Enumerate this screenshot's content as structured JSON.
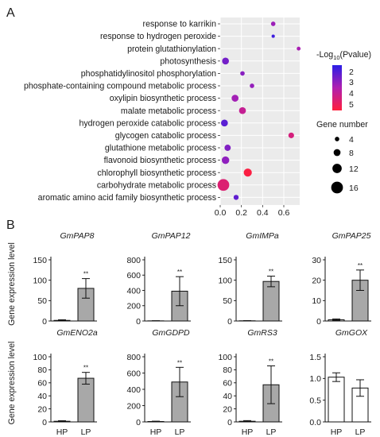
{
  "panel_labels": {
    "a": "A",
    "b": "B"
  },
  "legend": {
    "pvalue_title_prefix": "-Log",
    "pvalue_title_sub": "10",
    "pvalue_title_suffix": "(Pvalue)",
    "pvalue_ticks": [
      "2",
      "3",
      "4",
      "5"
    ],
    "gene_title": "Gene number",
    "gene_sizes": [
      4,
      8,
      12,
      16
    ],
    "gene_labels": [
      "4",
      "8",
      "12",
      "16"
    ],
    "colors": {
      "low": "#2a1ee6",
      "high": "#ff1f3d"
    }
  },
  "chart_data": [
    {
      "type": "scatter",
      "panel": "A",
      "title": "",
      "xlabel": "",
      "ylabel": "",
      "xlim": [
        0.0,
        0.75
      ],
      "x_ticks": [
        "0.0",
        "0.2",
        "0.4",
        "0.6"
      ],
      "x_tick_values": [
        0.0,
        0.2,
        0.4,
        0.6
      ],
      "grid": true,
      "points": [
        {
          "term": "response to karrikin",
          "x": 0.5,
          "genes": 4,
          "neglog10p": 3.2
        },
        {
          "term": "response to hydrogen peroxide",
          "x": 0.5,
          "genes": 2,
          "neglog10p": 1.8
        },
        {
          "term": "protein glutathionylation",
          "x": 0.74,
          "genes": 3,
          "neglog10p": 3.4
        },
        {
          "term": "photosynthesis",
          "x": 0.05,
          "genes": 8,
          "neglog10p": 2.6
        },
        {
          "term": "phosphatidylinositol phosphorylation",
          "x": 0.21,
          "genes": 4,
          "neglog10p": 2.9
        },
        {
          "term": "phosphate-containing compound metabolic process",
          "x": 0.3,
          "genes": 4,
          "neglog10p": 3.1
        },
        {
          "term": "oxylipin biosynthetic process",
          "x": 0.14,
          "genes": 8,
          "neglog10p": 3.3
        },
        {
          "term": "malate metabolic process",
          "x": 0.21,
          "genes": 8,
          "neglog10p": 4.0
        },
        {
          "term": "hydrogen peroxide catabolic process",
          "x": 0.04,
          "genes": 8,
          "neglog10p": 2.2
        },
        {
          "term": "glycogen catabolic process",
          "x": 0.67,
          "genes": 6,
          "neglog10p": 4.4
        },
        {
          "term": "glutathione metabolic process",
          "x": 0.07,
          "genes": 7,
          "neglog10p": 2.8
        },
        {
          "term": "flavonoid biosynthetic process",
          "x": 0.05,
          "genes": 9,
          "neglog10p": 3.0
        },
        {
          "term": "chlorophyll biosynthetic process",
          "x": 0.26,
          "genes": 10,
          "neglog10p": 5.4
        },
        {
          "term": "carbohydrate metabolic process",
          "x": 0.03,
          "genes": 16,
          "neglog10p": 4.6
        },
        {
          "term": "aromatic amino acid family biosynthetic process",
          "x": 0.15,
          "genes": 5,
          "neglog10p": 2.3
        }
      ]
    },
    {
      "type": "bar",
      "gene": "GmPAP8",
      "categories": [
        "HP",
        "LP"
      ],
      "values": [
        1.5,
        80
      ],
      "errors": [
        1.5,
        24
      ],
      "ylim": [
        0,
        150
      ],
      "yticks": [
        "0",
        "50",
        "100",
        "150"
      ],
      "significance": "**",
      "ylabel": "Gene expression level"
    },
    {
      "type": "bar",
      "gene": "GmPAP12",
      "categories": [
        "HP",
        "LP"
      ],
      "values": [
        2,
        390
      ],
      "errors": [
        2,
        190
      ],
      "ylim": [
        0,
        800
      ],
      "yticks": [
        "0",
        "200",
        "400",
        "600",
        "800"
      ],
      "significance": "**",
      "ylabel": ""
    },
    {
      "type": "bar",
      "gene": "GmIMPa",
      "categories": [
        "HP",
        "LP"
      ],
      "values": [
        0.5,
        97
      ],
      "errors": [
        0.5,
        13
      ],
      "ylim": [
        0,
        150
      ],
      "yticks": [
        "0",
        "50",
        "100",
        "150"
      ],
      "significance": "**",
      "ylabel": ""
    },
    {
      "type": "bar",
      "gene": "GmPAP25",
      "categories": [
        "HP",
        "LP"
      ],
      "values": [
        0.6,
        20
      ],
      "errors": [
        0.4,
        5
      ],
      "ylim": [
        0,
        30
      ],
      "yticks": [
        "0",
        "10",
        "20",
        "30"
      ],
      "significance": "**",
      "ylabel": ""
    },
    {
      "type": "bar",
      "gene": "GmENO2a",
      "categories": [
        "HP",
        "LP"
      ],
      "values": [
        1,
        67
      ],
      "errors": [
        0.8,
        9
      ],
      "ylim": [
        0,
        100
      ],
      "yticks": [
        "0",
        "20",
        "40",
        "60",
        "80",
        "100"
      ],
      "significance": "**",
      "ylabel": "Gene expression level"
    },
    {
      "type": "bar",
      "gene": "GmGDPD",
      "categories": [
        "HP",
        "LP"
      ],
      "values": [
        5,
        490
      ],
      "errors": [
        4,
        180
      ],
      "ylim": [
        0,
        800
      ],
      "yticks": [
        "0",
        "200",
        "400",
        "600",
        "800"
      ],
      "significance": "**",
      "ylabel": ""
    },
    {
      "type": "bar",
      "gene": "GmRS3",
      "categories": [
        "HP",
        "LP"
      ],
      "values": [
        1,
        57
      ],
      "errors": [
        1,
        29
      ],
      "ylim": [
        0,
        100
      ],
      "yticks": [
        "0",
        "20",
        "40",
        "60",
        "80",
        "100"
      ],
      "significance": "**",
      "ylabel": ""
    },
    {
      "type": "bar",
      "gene": "GmGOX",
      "categories": [
        "HP",
        "LP"
      ],
      "values": [
        1.03,
        0.78
      ],
      "errors": [
        0.1,
        0.19
      ],
      "ylim": [
        0,
        1.5
      ],
      "yticks": [
        "0.0",
        "0.5",
        "1.0",
        "1.5"
      ],
      "significance": "",
      "ylabel": ""
    }
  ]
}
